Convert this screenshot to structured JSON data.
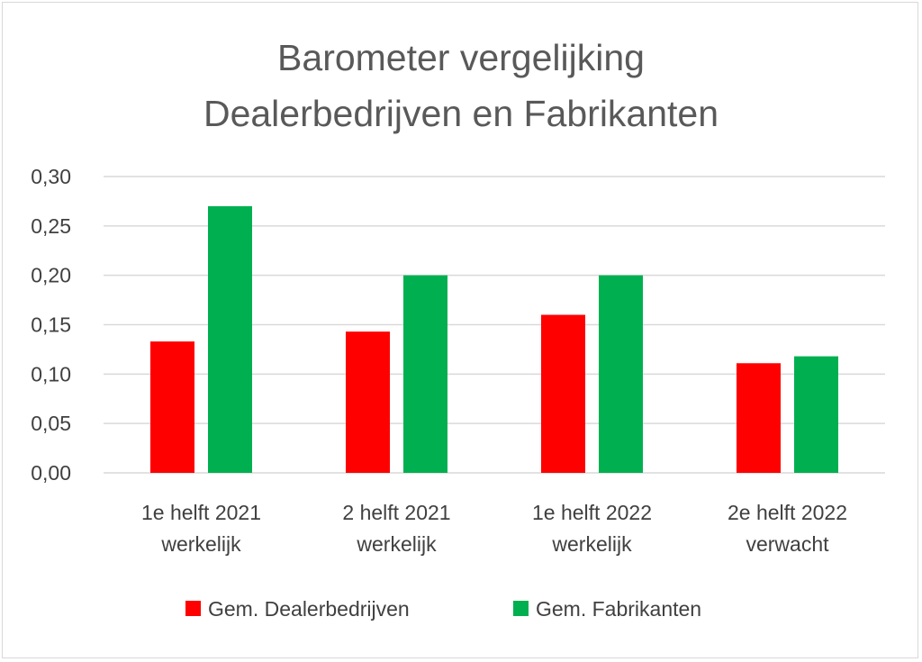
{
  "chart_data": {
    "type": "bar",
    "title": [
      "Barometer vergelijking",
      "Dealerbedrijven en Fabrikanten"
    ],
    "categories": [
      [
        "1e helft 2021",
        "werkelijk"
      ],
      [
        "2 helft 2021",
        "werkelijk"
      ],
      [
        "1e helft 2022",
        "werkelijk"
      ],
      [
        "2e helft 2022",
        "verwacht"
      ]
    ],
    "series": [
      {
        "name": "Gem. Dealerbedrijven",
        "color": "#ff0000",
        "values": [
          0.133,
          0.143,
          0.16,
          0.111
        ]
      },
      {
        "name": "Gem. Fabrikanten",
        "color": "#00b050",
        "values": [
          0.27,
          0.2,
          0.2,
          0.118
        ]
      }
    ],
    "ylim": [
      0,
      0.3
    ],
    "yticks": [
      "0,00",
      "0,05",
      "0,10",
      "0,15",
      "0,20",
      "0,25",
      "0,30"
    ],
    "grid": true,
    "legend": "bottom",
    "xlabel": "",
    "ylabel": ""
  }
}
